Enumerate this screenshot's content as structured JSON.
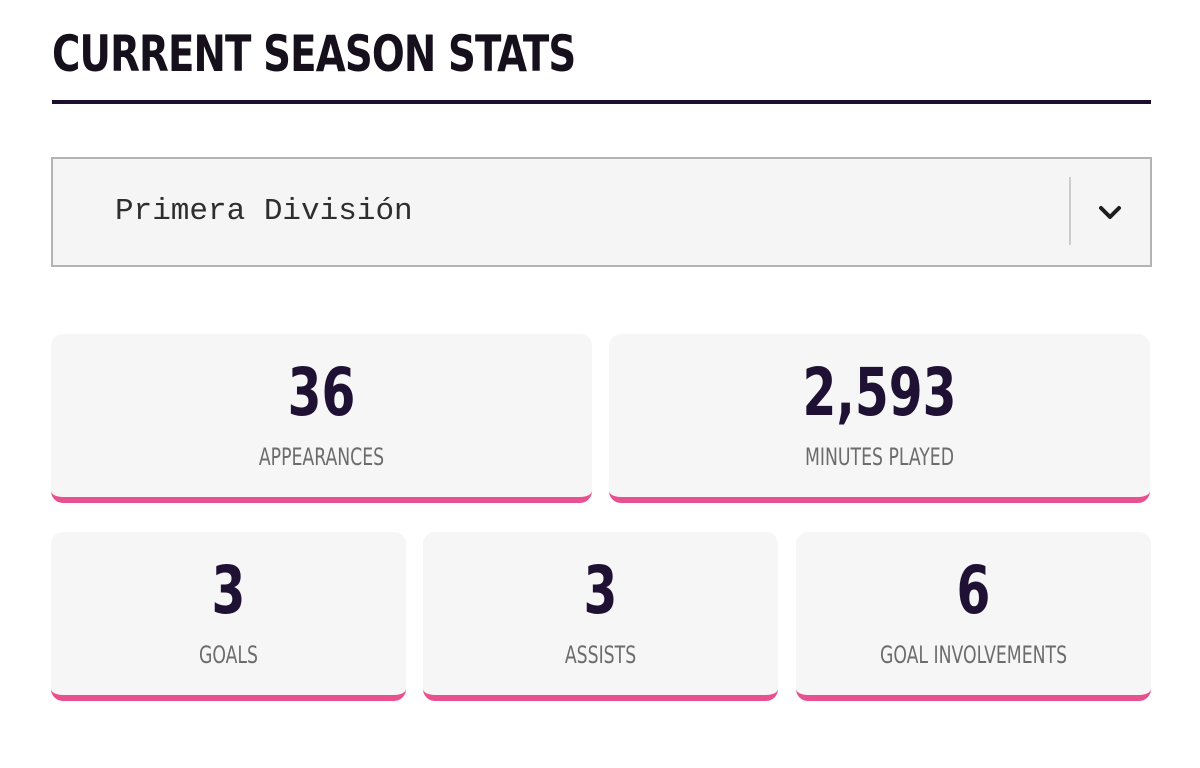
{
  "header": {
    "title": "CURRENT SEASON STATS"
  },
  "competition_select": {
    "value": "Primera División",
    "icon": "chevron-down-icon"
  },
  "stats": {
    "appearances": {
      "value": "36",
      "label": "APPEARANCES"
    },
    "minutes_played": {
      "value": "2,593",
      "label": "MINUTES PLAYED"
    },
    "goals": {
      "value": "3",
      "label": "GOALS"
    },
    "assists": {
      "value": "3",
      "label": "ASSISTS"
    },
    "goal_involvements": {
      "value": "6",
      "label": "GOAL INVOLVEMENTS"
    }
  },
  "colors": {
    "heading": "#1c0f2e",
    "accent": "#e8508f",
    "card_background": "#f6f6f6",
    "label": "#6c6c6c"
  }
}
